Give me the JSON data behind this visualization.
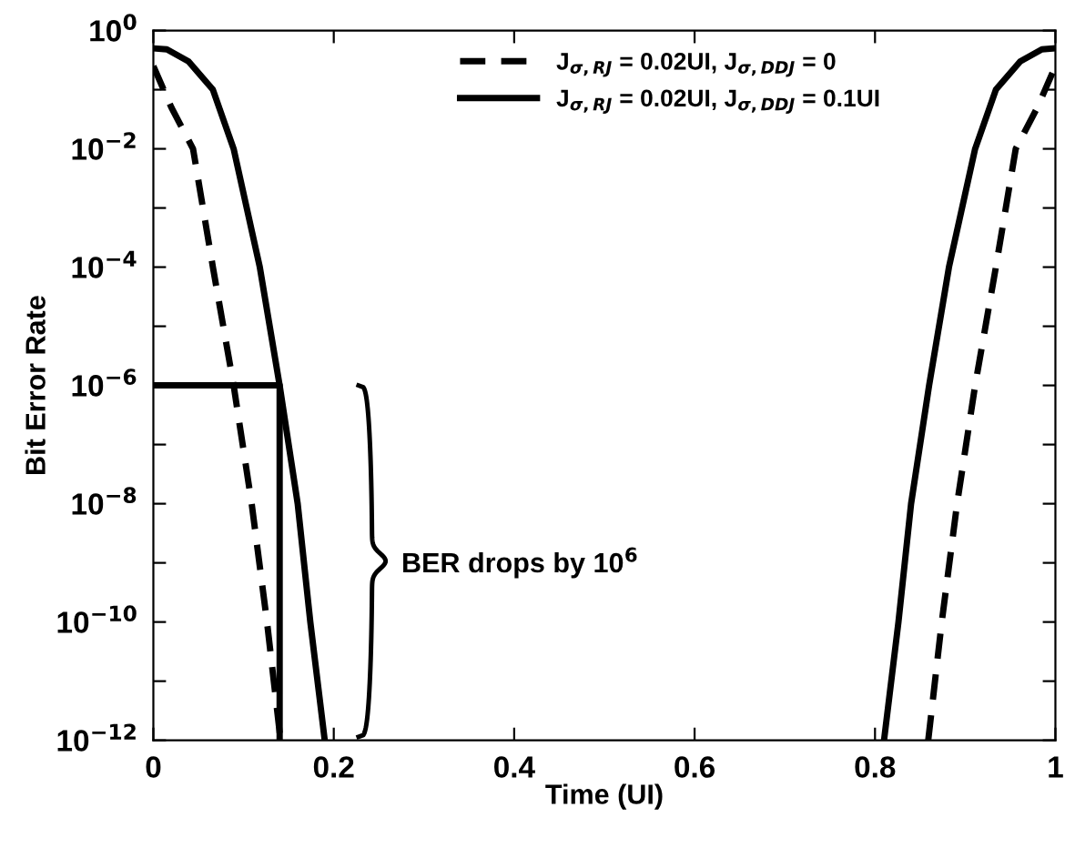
{
  "chart_data": {
    "type": "line",
    "xlabel": "Time (UI)",
    "ylabel": "Bit Error Rate",
    "log": "y",
    "xlim": [
      0,
      1
    ],
    "xticks": [
      0,
      0.2,
      0.4,
      0.6,
      0.8,
      1
    ],
    "ylim": [
      1e-12,
      1
    ],
    "yticks": [
      {
        "value": 1,
        "label": "10$^{0}$"
      },
      {
        "value": 0.1,
        "label": null
      },
      {
        "value": 0.01,
        "label": "10$^{−2}$"
      },
      {
        "value": 0.001,
        "label": null
      },
      {
        "value": 0.0001,
        "label": "10$^{−4}$"
      },
      {
        "value": 1e-05,
        "label": null
      },
      {
        "value": 1e-06,
        "label": "10$^{−6}$"
      },
      {
        "value": 1e-07,
        "label": null
      },
      {
        "value": 1e-08,
        "label": "10$^{−8}$"
      },
      {
        "value": 1e-09,
        "label": null
      },
      {
        "value": 1e-10,
        "label": "10$^{−10}$"
      },
      {
        "value": 1e-11,
        "label": null
      },
      {
        "value": 1e-12,
        "label": "10$^{−12}$"
      }
    ],
    "grid": false,
    "legend": "top right",
    "marker": "none",
    "series": [
      {
        "name": "J$_{σ,RJ}$ = 0.02UI, J$_{σ,DDJ}$ = 0",
        "color": "#000000",
        "line_style": "dashed",
        "x": [
          0,
          0.02,
          0.044,
          0.066,
          0.089,
          0.109,
          0.126,
          0.141,
          0.5,
          0.859,
          0.874,
          0.891,
          0.911,
          0.934,
          0.956,
          0.98,
          1.0
        ],
        "values": [
          0.25,
          0.05,
          0.01,
          0.0001,
          1e-06,
          1e-08,
          1e-10,
          1e-12,
          null,
          1e-12,
          1e-10,
          1e-08,
          1e-06,
          0.0001,
          0.01,
          0.05,
          0.25
        ]
      },
      {
        "name": "J$_{σ,RJ}$ = 0.02UI, J$_{σ,DDJ}$ = 0.1UI",
        "color": "#000000",
        "line_style": "solid",
        "x": [
          0,
          0.015,
          0.039,
          0.066,
          0.089,
          0.118,
          0.14,
          0.16,
          0.174,
          0.19,
          0.5,
          0.81,
          0.826,
          0.84,
          0.86,
          0.882,
          0.911,
          0.934,
          0.961,
          0.985,
          1.0
        ],
        "values": [
          0.5,
          0.48,
          0.3,
          0.1,
          0.01,
          0.0001,
          1e-06,
          1e-08,
          1e-10,
          1e-12,
          null,
          1e-12,
          1e-10,
          1e-08,
          1e-06,
          0.0001,
          0.01,
          0.1,
          0.3,
          0.48,
          0.5
        ]
      },
      {
        "color": "#000000",
        "line_style": "solid",
        "x": [
          0,
          0.14,
          0.14
        ],
        "values": [
          1e-06,
          1e-06,
          1e-12
        ]
      }
    ],
    "annotations": [
      "BER drops by 10$^{6}$"
    ]
  }
}
